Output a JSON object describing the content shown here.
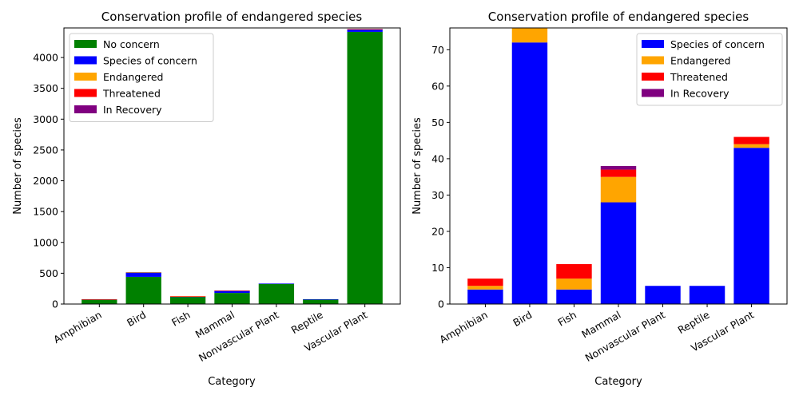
{
  "chart_data": [
    {
      "type": "bar",
      "stacked": true,
      "title": "Conservation profile of endangered species",
      "xlabel": "Category",
      "ylabel": "Number of species",
      "categories": [
        "Amphibian",
        "Bird",
        "Fish",
        "Mammal",
        "Nonvascular Plant",
        "Reptile",
        "Vascular Plant"
      ],
      "ylim": [
        0,
        4480
      ],
      "yticks": [
        0,
        500,
        1000,
        1500,
        2000,
        2500,
        3000,
        3500,
        4000
      ],
      "legend_position": "top-left",
      "series": [
        {
          "name": "No concern",
          "color": "#008000",
          "values": [
            72,
            441,
            116,
            180,
            328,
            73,
            4416
          ]
        },
        {
          "name": "Species of concern",
          "color": "#0000ff",
          "values": [
            4,
            72,
            4,
            28,
            5,
            5,
            43
          ]
        },
        {
          "name": "Endangered",
          "color": "#ffa500",
          "values": [
            1,
            4,
            3,
            7,
            0,
            0,
            1
          ]
        },
        {
          "name": "Threatened",
          "color": "#ff0000",
          "values": [
            2,
            0,
            4,
            2,
            0,
            0,
            2
          ]
        },
        {
          "name": "In Recovery",
          "color": "#800080",
          "values": [
            0,
            0,
            0,
            1,
            0,
            0,
            0
          ]
        }
      ]
    },
    {
      "type": "bar",
      "stacked": true,
      "title": "Conservation profile of endangered species",
      "xlabel": "Category",
      "ylabel": "Number of species",
      "categories": [
        "Amphibian",
        "Bird",
        "Fish",
        "Mammal",
        "Nonvascular Plant",
        "Reptile",
        "Vascular Plant"
      ],
      "ylim": [
        0,
        76
      ],
      "yticks": [
        0,
        10,
        20,
        30,
        40,
        50,
        60,
        70
      ],
      "legend_position": "top-right",
      "series": [
        {
          "name": "Species of concern",
          "color": "#0000ff",
          "values": [
            4,
            72,
            4,
            28,
            5,
            5,
            43
          ]
        },
        {
          "name": "Endangered",
          "color": "#ffa500",
          "values": [
            1,
            4,
            3,
            7,
            0,
            0,
            1
          ]
        },
        {
          "name": "Threatened",
          "color": "#ff0000",
          "values": [
            2,
            0,
            4,
            2,
            0,
            0,
            2
          ]
        },
        {
          "name": "In Recovery",
          "color": "#800080",
          "values": [
            0,
            0,
            0,
            1,
            0,
            0,
            0
          ]
        }
      ]
    }
  ]
}
